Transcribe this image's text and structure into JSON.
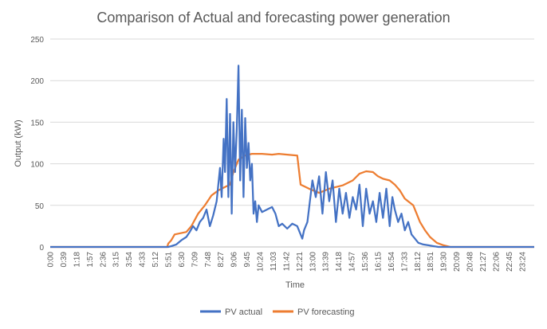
{
  "chart_data": {
    "type": "line",
    "title": "Comparison of Actual and forecasting power generation",
    "xlabel": "Time",
    "ylabel": "Output (kW)",
    "ylim": [
      0,
      250
    ],
    "yticks": [
      0,
      50,
      100,
      150,
      200,
      250
    ],
    "grid": true,
    "legend_position": "bottom",
    "x_tick_labels": [
      "0:00",
      "0:39",
      "1:18",
      "1:57",
      "2:36",
      "3:15",
      "3:54",
      "4:33",
      "5:12",
      "5:51",
      "6:30",
      "7:09",
      "7:48",
      "8:27",
      "9:06",
      "9:45",
      "10:24",
      "11:03",
      "11:42",
      "12:21",
      "13:00",
      "13:39",
      "14:18",
      "14:57",
      "15:36",
      "16:15",
      "16:54",
      "17:33",
      "18:12",
      "18:51",
      "19:30",
      "20:09",
      "20:48",
      "21:27",
      "22:06",
      "22:45",
      "23:24"
    ],
    "series": [
      {
        "name": "PV actual",
        "color": "#4472C4",
        "x": [
          "0:00",
          "5:51",
          "6:00",
          "6:15",
          "6:30",
          "6:45",
          "6:55",
          "7:05",
          "7:15",
          "7:25",
          "7:35",
          "7:45",
          "7:55",
          "8:05",
          "8:15",
          "8:25",
          "8:30",
          "8:36",
          "8:40",
          "8:45",
          "8:50",
          "8:55",
          "9:00",
          "9:05",
          "9:10",
          "9:15",
          "9:20",
          "9:25",
          "9:30",
          "9:35",
          "9:40",
          "9:45",
          "9:50",
          "9:55",
          "10:00",
          "10:05",
          "10:10",
          "10:15",
          "10:20",
          "10:30",
          "10:45",
          "11:00",
          "11:10",
          "11:20",
          "11:30",
          "11:45",
          "12:00",
          "12:15",
          "12:30",
          "12:35",
          "12:45",
          "13:00",
          "13:10",
          "13:20",
          "13:30",
          "13:40",
          "13:50",
          "14:00",
          "14:10",
          "14:20",
          "14:30",
          "14:40",
          "14:50",
          "15:00",
          "15:10",
          "15:20",
          "15:30",
          "15:40",
          "15:50",
          "16:00",
          "16:10",
          "16:20",
          "16:30",
          "16:40",
          "16:50",
          "16:58",
          "17:05",
          "17:15",
          "17:25",
          "17:35",
          "17:45",
          "17:55",
          "18:05",
          "18:15",
          "18:30",
          "18:45",
          "19:00",
          "19:15",
          "19:30",
          "24:00"
        ],
        "values": [
          0,
          0,
          1,
          3,
          8,
          12,
          18,
          25,
          20,
          30,
          35,
          45,
          25,
          38,
          55,
          95,
          60,
          130,
          90,
          178,
          60,
          160,
          40,
          150,
          90,
          140,
          218,
          80,
          165,
          60,
          155,
          95,
          125,
          80,
          100,
          40,
          55,
          30,
          50,
          42,
          45,
          48,
          40,
          25,
          28,
          22,
          28,
          25,
          10,
          20,
          30,
          80,
          60,
          85,
          40,
          90,
          55,
          80,
          30,
          70,
          40,
          65,
          35,
          60,
          45,
          75,
          25,
          70,
          40,
          55,
          30,
          65,
          35,
          70,
          25,
          60,
          45,
          30,
          40,
          20,
          30,
          15,
          10,
          5,
          3,
          2,
          1,
          0,
          0,
          0
        ]
      },
      {
        "name": "PV forecasting",
        "color": "#ED7D31",
        "x": [
          "0:00",
          "5:48",
          "5:51",
          "6:00",
          "6:10",
          "6:45",
          "7:00",
          "7:20",
          "7:40",
          "8:00",
          "8:20",
          "8:40",
          "8:55",
          "9:05",
          "9:20",
          "9:40",
          "10:00",
          "10:30",
          "11:00",
          "11:20",
          "11:45",
          "12:15",
          "12:25",
          "12:50",
          "13:20",
          "13:50",
          "14:10",
          "14:30",
          "15:00",
          "15:20",
          "15:40",
          "16:00",
          "16:15",
          "16:30",
          "16:50",
          "17:05",
          "17:20",
          "17:35",
          "18:00",
          "18:10",
          "18:20",
          "18:35",
          "18:50",
          "19:10",
          "19:30",
          "19:50",
          "20:00",
          "24:00"
        ],
        "values": [
          0,
          0,
          4,
          8,
          15,
          18,
          25,
          40,
          50,
          62,
          68,
          72,
          75,
          90,
          105,
          110,
          112,
          112,
          111,
          112,
          111,
          110,
          75,
          70,
          65,
          70,
          72,
          74,
          80,
          88,
          91,
          90,
          85,
          82,
          80,
          75,
          68,
          58,
          50,
          40,
          30,
          20,
          12,
          5,
          2,
          0,
          0,
          0
        ]
      }
    ]
  }
}
